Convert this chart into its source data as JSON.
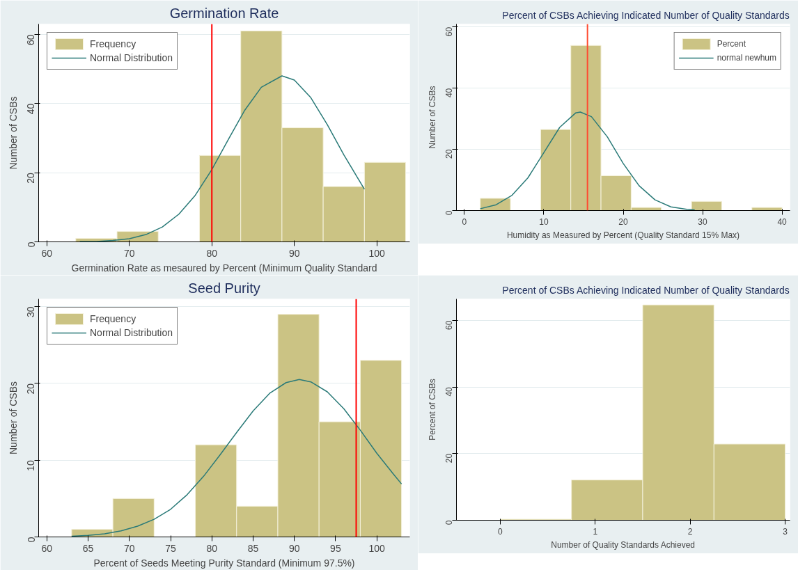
{
  "chart_data": [
    {
      "type": "histogram",
      "title": "Germination Rate",
      "xlabel": "Germination Rate as mesaured by Percent (Minimum Quality Standard",
      "ylabel": "Number of CSBs",
      "bins": [
        63.5,
        68.5,
        73.5,
        78.5,
        83.5,
        88.5,
        93.5,
        98.5,
        103.5
      ],
      "series": [
        {
          "name": "Frequency",
          "type": "histogram",
          "color": "#cbc384",
          "values": [
            1,
            3,
            0,
            25,
            61,
            33,
            16,
            23
          ]
        },
        {
          "name": "Normal Distribution",
          "type": "line",
          "color": "#2a7a78",
          "x": [
            64,
            66,
            68,
            70,
            72,
            74,
            76,
            78,
            80,
            82,
            84,
            86,
            88.5,
            90,
            92,
            94,
            96,
            98.5
          ],
          "values": [
            0.1,
            0.1,
            0.4,
            0.9,
            2.1,
            4.3,
            8.0,
            13.5,
            20.9,
            29.6,
            38.1,
            44.7,
            48,
            46.8,
            41.7,
            33.9,
            25.2,
            15.2
          ]
        }
      ],
      "xlim": [
        59,
        104
      ],
      "xticks": [
        60,
        70,
        80,
        90,
        100
      ],
      "ylim": [
        0,
        63
      ],
      "yticks": [
        0,
        20,
        40,
        60
      ],
      "grid": "y",
      "legend": "top left",
      "ref_lines": [
        {
          "axis": "x",
          "value": 80,
          "color": "#ff0000"
        }
      ]
    },
    {
      "type": "histogram",
      "title": "Percent of CSBs Achieving Indicated Number of Quality Standards",
      "xlabel": "Humidity as Measured by Percent (Quality Standard 15% Max)",
      "ylabel": "Number of CSBs",
      "bins": [
        2,
        5.8,
        9.6,
        13.4,
        17.2,
        21,
        24.8,
        28.6,
        32.4,
        36.2,
        40
      ],
      "series": [
        {
          "name": "Percent",
          "type": "histogram",
          "color": "#cbc384",
          "values": [
            4,
            0,
            26.5,
            54,
            11.4,
            1,
            0,
            3,
            0,
            1
          ]
        },
        {
          "name": "normal newhum",
          "type": "line",
          "color": "#2a7a78",
          "x": [
            2,
            4,
            6,
            8,
            10,
            12,
            14,
            14.6,
            16,
            18,
            20,
            22,
            24,
            26,
            28,
            29
          ],
          "values": [
            0.6,
            1.9,
            5.0,
            10.7,
            18.9,
            27.2,
            31.9,
            32.2,
            30.7,
            24.1,
            15.4,
            8.1,
            3.5,
            1.2,
            0.4,
            0.2
          ]
        }
      ],
      "xlim": [
        -1,
        41
      ],
      "xticks": [
        0,
        10,
        20,
        30,
        40
      ],
      "ylim": [
        0,
        61
      ],
      "yticks": [
        0,
        20,
        40,
        60
      ],
      "grid": "y",
      "legend": "top right",
      "ref_lines": [
        {
          "axis": "x",
          "value": 15.5,
          "color": "#ff4a30"
        }
      ]
    },
    {
      "type": "histogram",
      "title": "Seed Purity",
      "xlabel": "Percent of Seeds Meeting Purity Standard (Minimum 97.5%)",
      "ylabel": "Number of CSBs",
      "bins": [
        63,
        68,
        73,
        78,
        83,
        88,
        93,
        98,
        103
      ],
      "series": [
        {
          "name": "Frequency",
          "type": "histogram",
          "color": "#cbc384",
          "values": [
            1,
            5,
            0,
            12,
            4,
            29,
            15,
            23
          ]
        },
        {
          "name": "Normal Distribution",
          "type": "line",
          "color": "#2a7a78",
          "x": [
            63,
            65,
            67,
            69,
            71,
            73,
            75,
            77,
            79,
            81,
            83,
            85,
            87,
            89,
            90.6,
            92,
            94,
            96,
            98,
            100,
            102,
            103
          ],
          "values": [
            0.1,
            0.2,
            0.4,
            0.8,
            1.4,
            2.3,
            3.6,
            5.5,
            7.9,
            10.7,
            13.6,
            16.4,
            18.7,
            20.1,
            20.5,
            20.2,
            18.9,
            16.7,
            13.9,
            10.9,
            8.2,
            6.9
          ]
        }
      ],
      "xlim": [
        59,
        104
      ],
      "xticks": [
        60,
        65,
        70,
        75,
        80,
        85,
        90,
        95,
        100
      ],
      "ylim": [
        0,
        31
      ],
      "yticks": [
        0,
        10,
        20,
        30
      ],
      "grid": "y",
      "legend": "top left",
      "ref_lines": [
        {
          "axis": "x",
          "value": 97.5,
          "color": "#ff0000"
        }
      ]
    },
    {
      "type": "histogram",
      "title": "Percent of CSBs Achieving Indicated Number of Quality Standards",
      "xlabel": "Number of Quality Standards Achieved",
      "ylabel": "Percent of CSBs",
      "bins": [
        0,
        0.75,
        1.5,
        2.25,
        3
      ],
      "color": "#cbc384",
      "values": [
        0.3,
        12.1,
        64.7,
        22.9
      ],
      "xlim": [
        -0.46,
        3.05
      ],
      "xticks": [
        0,
        1,
        2,
        3
      ],
      "ylim": [
        0,
        66.5
      ],
      "yticks": [
        0,
        20,
        40,
        60
      ],
      "grid": "y"
    }
  ]
}
